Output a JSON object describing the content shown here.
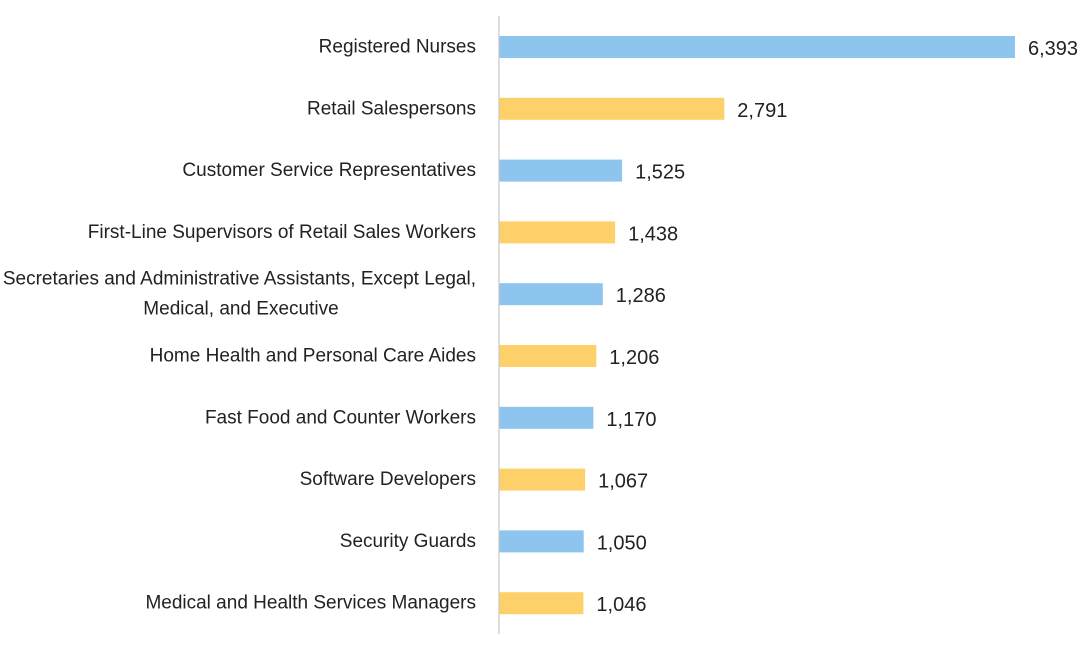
{
  "chart_data": {
    "type": "bar",
    "orientation": "horizontal",
    "title": "",
    "xlabel": "",
    "ylabel": "",
    "grid": false,
    "legend": "none",
    "xlim": [
      0,
      6393
    ],
    "categories": [
      "Registered Nurses",
      "Retail Salespersons",
      "Customer Service Representatives",
      "First-Line Supervisors of Retail Sales Workers",
      "Secretaries and Administrative Assistants, Except Legal, Medical, and Executive",
      "Home Health and Personal Care Aides",
      "Fast Food and Counter Workers",
      "Software Developers",
      "Security Guards",
      "Medical and Health Services Managers"
    ],
    "category_lines": [
      [
        "Registered Nurses"
      ],
      [
        "Retail Salespersons"
      ],
      [
        "Customer Service Representatives"
      ],
      [
        "First-Line Supervisors of Retail Sales Workers"
      ],
      [
        "Secretaries and Administrative Assistants, Except Legal,",
        "Medical, and Executive"
      ],
      [
        "Home Health and Personal Care Aides"
      ],
      [
        "Fast Food and Counter Workers"
      ],
      [
        "Software Developers"
      ],
      [
        "Security Guards"
      ],
      [
        "Medical and Health Services Managers"
      ]
    ],
    "values": [
      6393,
      2791,
      1525,
      1438,
      1286,
      1206,
      1170,
      1067,
      1050,
      1046
    ],
    "value_labels": [
      "6,393",
      "2,791",
      "1,525",
      "1,438",
      "1,286",
      "1,206",
      "1,170",
      "1,067",
      "1,050",
      "1,046"
    ],
    "bar_colors": [
      "#8DC5EE",
      "#FDD069",
      "#8DC5EE",
      "#FDD069",
      "#8DC5EE",
      "#FDD069",
      "#8DC5EE",
      "#FDD069",
      "#8DC5EE",
      "#FDD069"
    ]
  }
}
